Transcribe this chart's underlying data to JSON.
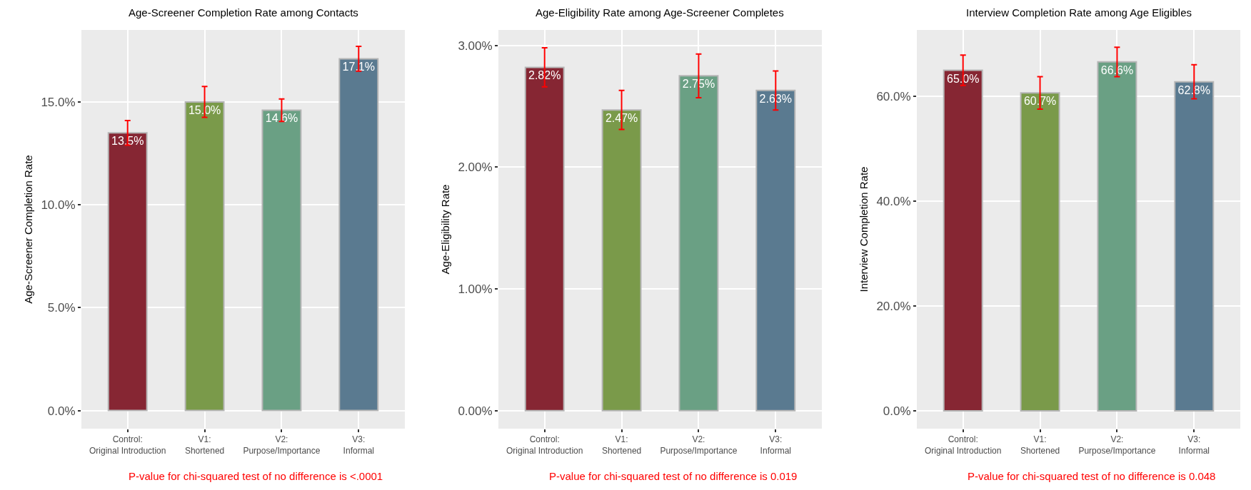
{
  "chart_data": [
    {
      "type": "bar",
      "title": "Age-Screener Completion Rate among Contacts",
      "ylabel": "Age-Screener Completion Rate",
      "categories": [
        "Control:\nOriginal Introduction",
        "V1:\nShortened",
        "V2:\nPurpose/Importance",
        "V3:\nInformal"
      ],
      "values": [
        13.5,
        15.0,
        14.6,
        17.1
      ],
      "errors": [
        0.6,
        0.75,
        0.55,
        0.6
      ],
      "value_labels": [
        "13.5%",
        "15.0%",
        "14.6%",
        "17.1%"
      ],
      "colors": [
        "#862633",
        "#7a9a4a",
        "#6aa084",
        "#5a7a90"
      ],
      "ylim": [
        -0.88,
        18.5
      ],
      "yticks": [
        {
          "value": 0,
          "label": "0.0%"
        },
        {
          "value": 5,
          "label": "5.0%"
        },
        {
          "value": 10,
          "label": "10.0%"
        },
        {
          "value": 15,
          "label": "15.0%"
        }
      ],
      "grid": true,
      "annotations": [
        "P-value for chi-squared test of no difference is <.0001"
      ]
    },
    {
      "type": "bar",
      "title": "Age-Eligibility Rate among Age-Screener Completes",
      "ylabel": "Age-Eligibility Rate",
      "categories": [
        "Control:\nOriginal Introduction",
        "V1:\nShortened",
        "V2:\nPurpose/Importance",
        "V3:\nInformal"
      ],
      "values": [
        2.82,
        2.47,
        2.75,
        2.63
      ],
      "errors": [
        0.16,
        0.16,
        0.18,
        0.16
      ],
      "value_labels": [
        "2.82%",
        "2.47%",
        "2.75%",
        "2.63%"
      ],
      "colors": [
        "#862633",
        "#7a9a4a",
        "#6aa084",
        "#5a7a90"
      ],
      "ylim": [
        -0.148,
        3.127
      ],
      "yticks": [
        {
          "value": 0,
          "label": "0.00%"
        },
        {
          "value": 1,
          "label": "1.00%"
        },
        {
          "value": 2,
          "label": "2.00%"
        },
        {
          "value": 3,
          "label": "3.00%"
        }
      ],
      "grid": true,
      "annotations": [
        "P-value for chi-squared test of no difference is 0.019"
      ]
    },
    {
      "type": "bar",
      "title": "Interview Completion Rate among Age Eligibles",
      "ylabel": "Interview Completion Rate",
      "categories": [
        "Control:\nOriginal Introduction",
        "V1:\nShortened",
        "V2:\nPurpose/Importance",
        "V3:\nInformal"
      ],
      "values": [
        65.0,
        60.7,
        66.6,
        62.8
      ],
      "errors": [
        2.9,
        3.1,
        2.8,
        3.25
      ],
      "value_labels": [
        "65.0%",
        "60.7%",
        "66.6%",
        "62.8%"
      ],
      "colors": [
        "#862633",
        "#7a9a4a",
        "#6aa084",
        "#5a7a90"
      ],
      "ylim": [
        -3.4,
        72.7
      ],
      "yticks": [
        {
          "value": 0,
          "label": "0.0%"
        },
        {
          "value": 20,
          "label": "20.0%"
        },
        {
          "value": 40,
          "label": "40.0%"
        },
        {
          "value": 60,
          "label": "60.0%"
        }
      ],
      "grid": true,
      "annotations": [
        "P-value for chi-squared test of no difference is 0.048"
      ]
    }
  ]
}
